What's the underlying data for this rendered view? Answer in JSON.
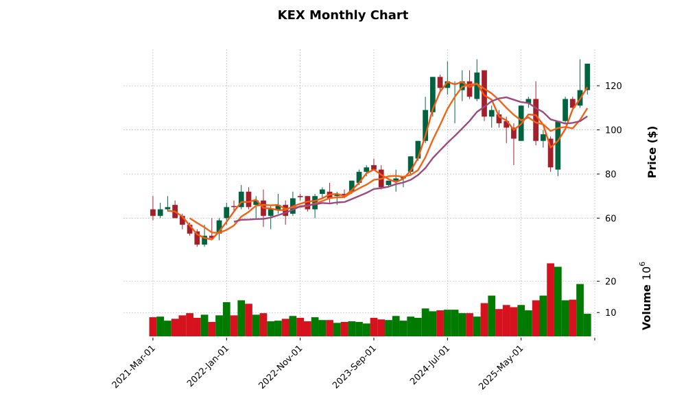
{
  "chart_data": {
    "type": "candlestick",
    "title": "KEX Monthly Chart",
    "ylabel": "Price ($)",
    "volume_label": "Volume",
    "volume_exponent": "6",
    "x_tick_labels": [
      "2021-Mar-01",
      "2022-Jan-01",
      "2022-Nov-01",
      "2023-Sep-01",
      "2024-Jul-01",
      "2025-May-01"
    ],
    "x_tick_index": [
      0,
      10,
      20,
      30,
      40,
      50
    ],
    "xlim": [
      -4,
      60
    ],
    "price_ylim": [
      44,
      136.5
    ],
    "price_ticks": [
      60,
      80,
      100,
      120
    ],
    "volume_ylim": [
      2.4,
      28.2
    ],
    "volume_ticks": [
      10,
      20
    ],
    "grid": true,
    "moving_averages": [
      3,
      6,
      12
    ],
    "colors": {
      "up": "#006340",
      "down": "#a3202a",
      "vol_up": "#007a00",
      "vol_down": "#d5121d",
      "ma": [
        "#f15a16",
        "#f06418",
        "#9c4a7e"
      ]
    },
    "ohlc": [
      [
        64,
        70,
        59,
        61
      ],
      [
        61,
        67,
        60,
        64
      ],
      [
        64,
        70,
        63,
        65
      ],
      [
        66,
        68,
        60,
        60
      ],
      [
        61,
        62,
        55,
        57
      ],
      [
        57,
        58,
        52,
        53
      ],
      [
        54,
        55,
        47,
        48
      ],
      [
        48,
        57,
        47,
        52
      ],
      [
        52,
        60,
        50,
        51
      ],
      [
        53,
        60,
        50,
        59
      ],
      [
        60,
        67,
        57,
        65
      ],
      [
        65.5,
        68,
        63,
        65
      ],
      [
        65,
        75,
        64,
        72
      ],
      [
        72,
        74,
        64,
        65
      ],
      [
        66,
        70,
        60,
        68
      ],
      [
        68,
        73,
        56,
        61
      ],
      [
        61,
        66,
        55,
        64
      ],
      [
        64,
        71,
        62,
        66
      ],
      [
        66,
        68,
        57,
        61
      ],
      [
        62,
        72,
        61,
        69
      ],
      [
        70,
        71,
        68,
        69.5
      ],
      [
        70,
        70,
        63,
        64
      ],
      [
        64,
        71,
        60,
        70
      ],
      [
        71,
        74,
        69,
        73
      ],
      [
        72,
        76,
        67,
        69
      ],
      [
        70,
        72,
        66,
        71
      ],
      [
        71,
        73,
        69,
        70
      ],
      [
        72,
        77,
        71,
        77
      ],
      [
        76,
        82,
        75,
        81
      ],
      [
        81,
        84,
        79,
        83
      ],
      [
        84,
        87,
        82,
        82
      ],
      [
        82,
        84,
        73,
        74
      ],
      [
        75,
        77,
        74,
        77
      ],
      [
        77,
        82,
        72,
        78
      ],
      [
        78,
        79,
        74,
        78.5
      ],
      [
        81,
        88,
        80,
        88
      ],
      [
        87,
        95,
        86,
        95
      ],
      [
        95,
        115,
        94,
        109
      ],
      [
        108,
        124,
        106,
        124
      ],
      [
        124,
        125,
        117,
        119
      ],
      [
        119,
        131,
        116,
        122
      ],
      [
        121,
        122,
        103,
        121
      ],
      [
        118,
        127,
        113,
        122
      ],
      [
        122,
        127,
        114,
        115
      ],
      [
        114,
        132,
        113,
        126
      ],
      [
        127,
        127,
        104,
        106
      ],
      [
        106,
        111,
        101,
        109
      ],
      [
        107,
        109,
        101,
        103
      ],
      [
        104,
        106,
        94,
        101
      ],
      [
        101,
        103,
        84,
        96
      ],
      [
        95,
        111,
        95,
        111
      ],
      [
        112,
        115,
        110,
        114
      ],
      [
        114,
        122,
        93,
        95
      ],
      [
        95,
        100,
        92,
        98
      ],
      [
        96,
        97,
        81,
        83
      ],
      [
        82,
        104,
        79,
        104
      ],
      [
        104,
        115,
        103,
        114
      ],
      [
        114,
        115,
        110,
        110
      ],
      [
        111,
        132,
        110,
        118
      ],
      [
        118,
        130,
        116,
        130
      ]
    ],
    "volume": [
      8.5,
      8.7,
      7.4,
      8.0,
      9.1,
      9.8,
      8.3,
      9.3,
      7.0,
      9.1,
      13.3,
      9.1,
      13.9,
      12.8,
      9.3,
      9.8,
      7.2,
      7.4,
      8.0,
      8.9,
      8.3,
      7.2,
      8.5,
      7.6,
      7.6,
      6.7,
      7.0,
      7.2,
      7.0,
      6.5,
      8.3,
      7.8,
      7.6,
      8.9,
      7.4,
      8.7,
      8.3,
      11.3,
      10.4,
      10.7,
      10.9,
      10.9,
      9.8,
      9.8,
      8.7,
      13.0,
      15.4,
      11.1,
      12.4,
      11.7,
      12.4,
      10.7,
      13.9,
      15.4,
      25.7,
      24.6,
      13.9,
      14.1,
      19.1,
      9.6
    ]
  }
}
